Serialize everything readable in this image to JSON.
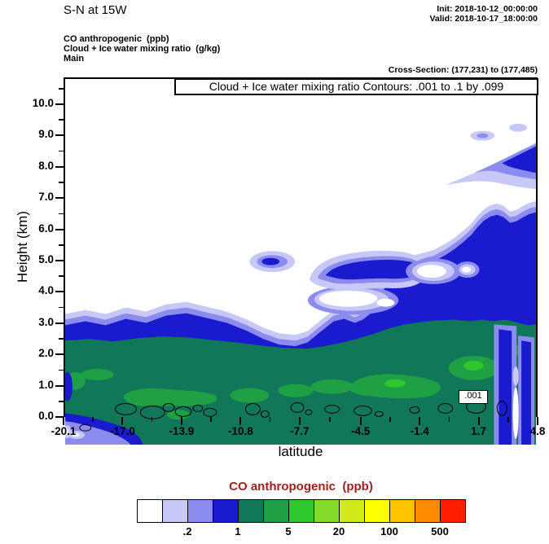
{
  "header": {
    "title": "S-N at 15W",
    "init": "Init: 2018-10-12_00:00:00",
    "valid": "Valid: 2018-10-17_18:00:00",
    "fields": {
      "fill_field": "CO anthropogenic  (ppb)",
      "overlay_field": "Cloud + Ice water mixing ratio  (g/kg)",
      "domain": "Main"
    },
    "cross_section": "Cross-Section: (177,231) to (177,485)"
  },
  "chart_data": {
    "type": "filled-contour-cross-section",
    "title_box": "Cloud + Ice water mixing ratio Contours: .001 to .1 by .099",
    "fill_variable": "CO anthropogenic (ppb)",
    "overlay_variable": "Cloud + Ice water mixing ratio (g/kg)",
    "overlay_contour_min": ".001",
    "overlay_contour_max": ".1",
    "overlay_contour_interval": ".099",
    "contour_inline_label": ".001",
    "xlabel": "latitude",
    "ylabel": "Height (km)",
    "xlim": [
      -20.1,
      4.8
    ],
    "ylim": [
      0,
      10.86
    ],
    "xticks": [
      -20.1,
      -17.0,
      -13.9,
      -10.8,
      -7.7,
      -4.5,
      -1.4,
      1.7,
      4.8
    ],
    "xtick_labels": [
      "-20.1",
      "-17.0",
      "-13.9",
      "-10.8",
      "-7.7",
      "-4.5",
      "-1.4",
      "1.7",
      "4.8"
    ],
    "yticks": [
      0,
      1,
      2,
      3,
      4,
      5,
      6,
      7,
      8,
      9,
      10
    ],
    "ytick_labels": [
      "0.0",
      "1.0",
      "2.0",
      "3.0",
      "4.0",
      "5.0",
      "6.0",
      "7.0",
      "8.0",
      "9.0",
      "10.0"
    ],
    "legend": {
      "title": "CO anthropogenic  (ppb)",
      "title_color": "#a02020",
      "colors": [
        "#ffffff",
        "#c8c8f8",
        "#8c8cee",
        "#1a1ace",
        "#107858",
        "#1fa044",
        "#2ec82e",
        "#84da28",
        "#d0ea1e",
        "#ffff00",
        "#ffc400",
        "#ff8c00",
        "#ff1e00"
      ],
      "level_boundaries": [
        0.1,
        0.2,
        0.5,
        1,
        2,
        5,
        10,
        20,
        50,
        100,
        200,
        500
      ],
      "boundary_labels": [
        {
          "index": 2,
          "label": ".2"
        },
        {
          "index": 4,
          "label": "1"
        },
        {
          "index": 6,
          "label": "5"
        },
        {
          "index": 8,
          "label": "20"
        },
        {
          "index": 10,
          "label": "100"
        },
        {
          "index": 12,
          "label": "500"
        }
      ]
    },
    "features_summary": "CO-rich boundary layer (2-20 ppb, teal/green) below ~3-4 km at all latitudes with green maxima near 1.5-2.5 km; blue (0.5-1 ppb) cloud-bearing layer rises from ~4 km on the left to ~7.5 km toward lat 4.8; isolated blue blob near lat -10.5 at ~6 km; white low-CO hole near lat 1.5 at ~5.7 km; detached lavender/blue band 8.2-9.8 km near lat 2 to 4.8; small black .001 g/kg cloud outlines near 0.5-1.2 km; low-CO blue pocket at surface near lat -20 to -16 and vertical blue streaks near lat 3.5-4.8."
  }
}
